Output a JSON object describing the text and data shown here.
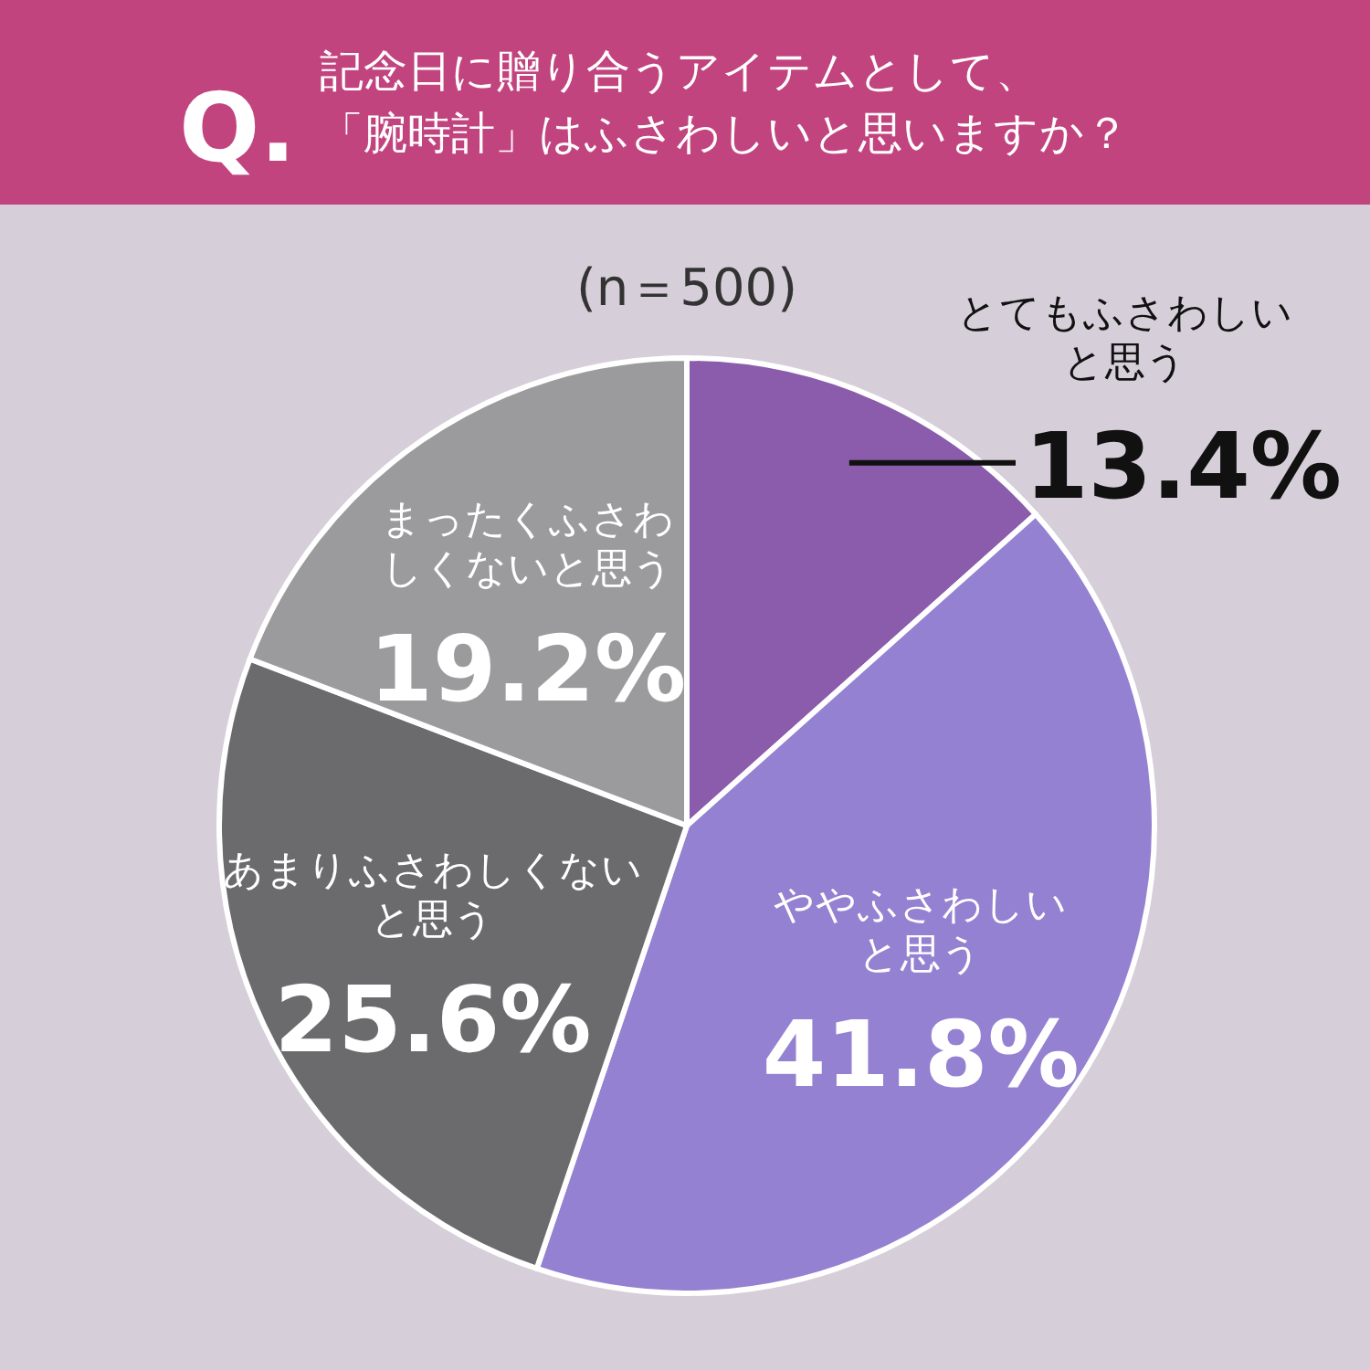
{
  "chart_data": {
    "type": "pie",
    "title": "記念日に贈り合うアイテムとして、「腕時計」はふさわしいと思いますか？",
    "subtitle": "(n＝500)",
    "annotations": [
      "Q."
    ],
    "categories": [
      "とてもふさわしいと思う",
      "ややふさわしいと思う",
      "あまりふさわしくないと思う",
      "まったくふさわしくないと思う"
    ],
    "values": [
      13.4,
      41.8,
      25.6,
      19.2
    ],
    "value_labels": [
      "13.4%",
      "41.8%",
      "25.6%",
      "19.2%"
    ],
    "colors": [
      "#8a5cab",
      "#9581d1",
      "#6b6a6d",
      "#9b9a9c"
    ]
  }
}
